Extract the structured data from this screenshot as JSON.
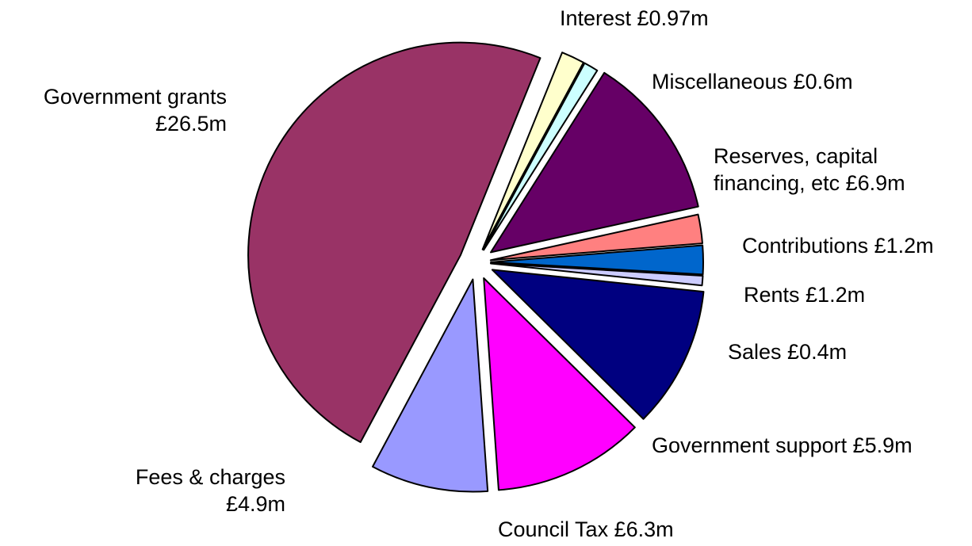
{
  "chart_data": {
    "type": "pie",
    "title": "",
    "slices": [
      {
        "name": "Interest",
        "label": "Interest £0.97m",
        "value": 0.97,
        "color": "#FFFFCC"
      },
      {
        "name": "Miscellaneous",
        "label": "Miscellaneous £0.6m",
        "value": 0.6,
        "color": "#CCFFFF"
      },
      {
        "name": "Reserves, capital financing, etc",
        "label_lines": [
          "Reserves, capital",
          "financing, etc £6.9m"
        ],
        "value": 6.9,
        "color": "#660066"
      },
      {
        "name": "Contributions",
        "label": "Contributions £1.2m",
        "value": 1.2,
        "color": "#FF8080"
      },
      {
        "name": "Rents",
        "label": "Rents £1.2m",
        "value": 1.2,
        "color": "#0066CC"
      },
      {
        "name": "Sales",
        "label": "Sales £0.4m",
        "value": 0.4,
        "color": "#CCCCFF"
      },
      {
        "name": "Government support",
        "label": "Government support £5.9m",
        "value": 5.9,
        "color": "#000080"
      },
      {
        "name": "Council Tax",
        "label": "Council Tax £6.3m",
        "value": 6.3,
        "color": "#FF00FF"
      },
      {
        "name": "Fees & charges",
        "label_lines": [
          "Fees & charges",
          "£4.9m"
        ],
        "value": 4.9,
        "color": "#9999FF"
      },
      {
        "name": "Government grants",
        "label_lines": [
          "Government grants",
          "£26.5m"
        ],
        "value": 26.5,
        "color": "#993366"
      }
    ]
  }
}
